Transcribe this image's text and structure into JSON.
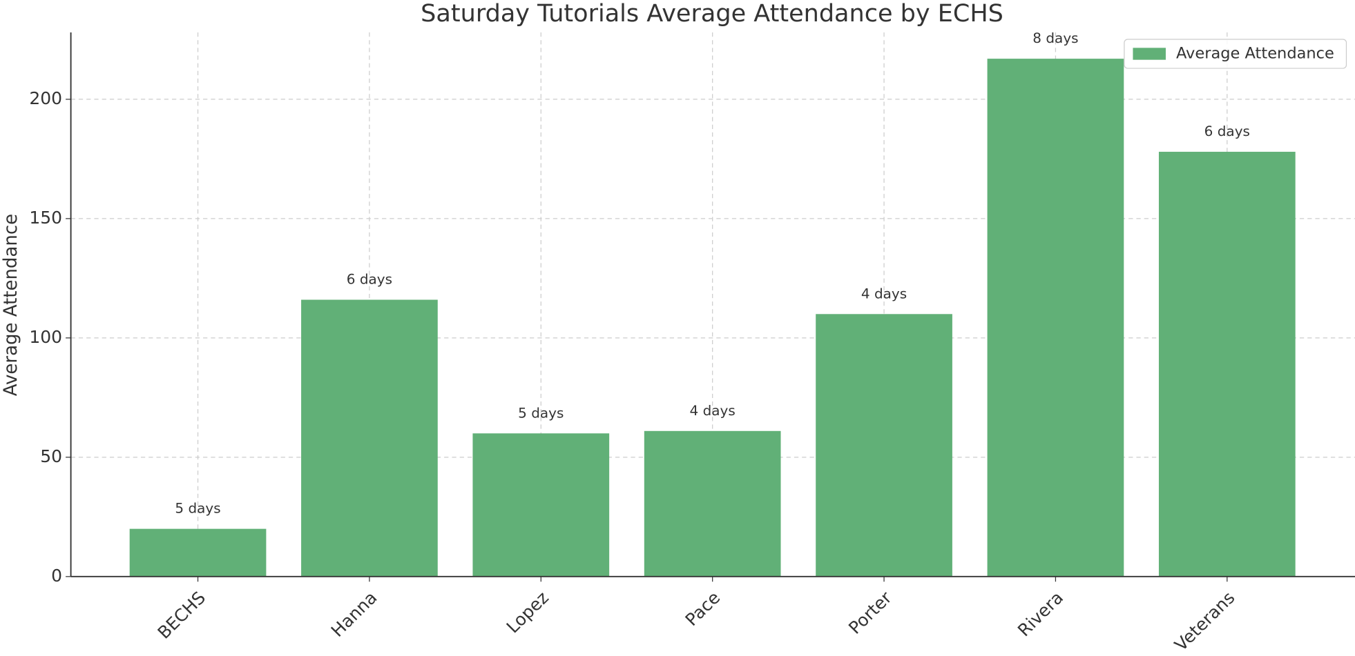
{
  "chart_data": {
    "type": "bar",
    "title": "Saturday Tutorials Average Attendance by ECHS",
    "ylabel": "Average Attendance",
    "categories": [
      "BECHS",
      "Hanna",
      "Lopez",
      "Pace",
      "Porter",
      "Rivera",
      "Veterans"
    ],
    "series": [
      {
        "name": "Average Attendance",
        "color": "#61b077",
        "values": [
          20,
          116,
          60,
          61,
          110,
          217,
          178
        ]
      }
    ],
    "annotations": [
      "5 days",
      "6 days",
      "5 days",
      "4 days",
      "4 days",
      "8 days",
      "6 days"
    ],
    "ylim": [
      0,
      228
    ],
    "yticks": [
      0,
      50,
      100,
      150,
      200
    ],
    "grid": true,
    "legend": "upper right"
  }
}
